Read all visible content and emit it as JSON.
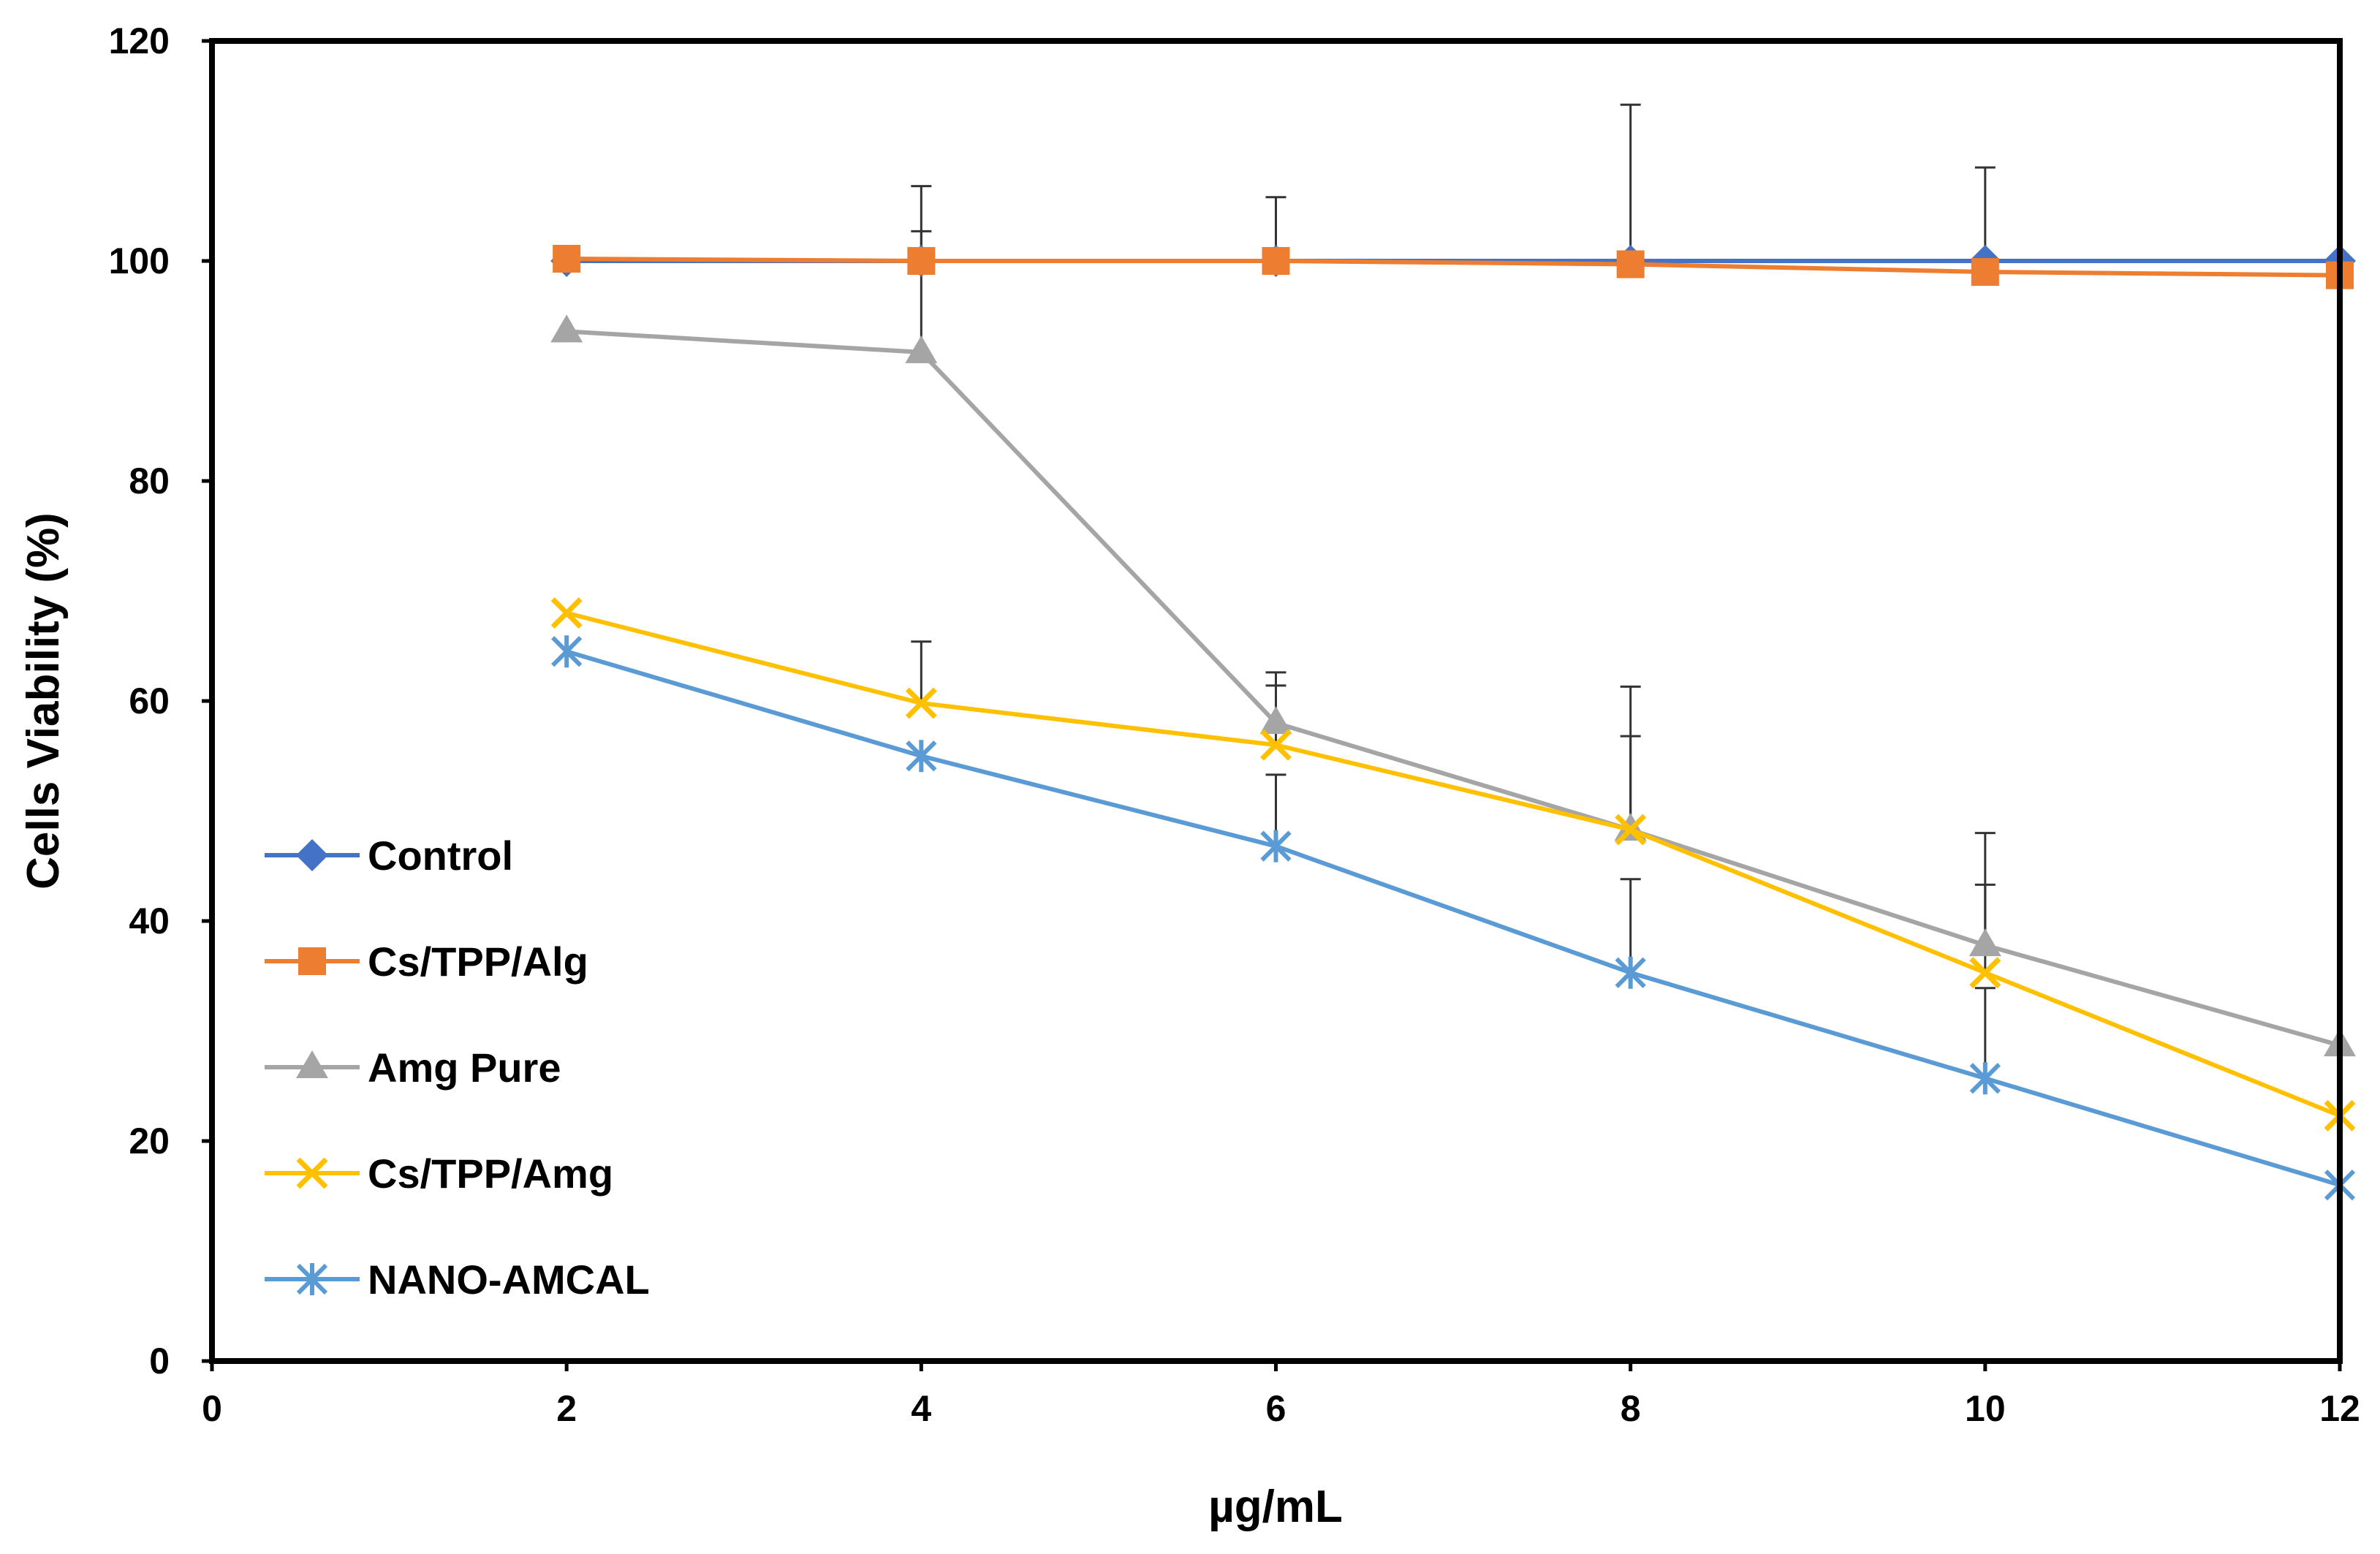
{
  "chart_data": {
    "type": "line",
    "title": "",
    "xlabel": "µg/mL",
    "ylabel": "Cells Viability (%)",
    "xlim": [
      0,
      12
    ],
    "ylim": [
      0,
      120
    ],
    "xticks": [
      0,
      2,
      4,
      6,
      8,
      10,
      12
    ],
    "yticks": [
      0,
      20,
      40,
      60,
      80,
      100,
      120
    ],
    "grid": false,
    "legend_position": "left",
    "series": [
      {
        "name": "Control",
        "color": "#4472C4",
        "marker": "diamond",
        "x": [
          2,
          4,
          6,
          8,
          10,
          12
        ],
        "values": [
          100,
          100,
          100,
          100,
          100,
          100
        ],
        "error": [
          0,
          0,
          0,
          0,
          0,
          0
        ]
      },
      {
        "name": "Cs/TPP/Alg",
        "color": "#ED7D31",
        "marker": "square",
        "x": [
          2,
          4,
          6,
          8,
          10,
          12
        ],
        "values": [
          100.2,
          100,
          100,
          99.7,
          99,
          98.7
        ],
        "error": [
          0,
          6.8,
          5.8,
          14.5,
          9.5,
          0
        ]
      },
      {
        "name": "Amg Pure",
        "color": "#A5A5A5",
        "marker": "triangle",
        "x": [
          2,
          4,
          6,
          8,
          10,
          12
        ],
        "values": [
          93.6,
          91.7,
          58,
          48.3,
          37.8,
          28.7
        ],
        "error": [
          0,
          11,
          4.6,
          8.5,
          5.5,
          0
        ]
      },
      {
        "name": "Cs/TPP/Amg",
        "color": "#FFC000",
        "marker": "x",
        "x": [
          2,
          4,
          6,
          8,
          10,
          12
        ],
        "values": [
          68,
          59.8,
          56,
          48.3,
          35.3,
          22.3
        ],
        "error": [
          0,
          5.6,
          5.4,
          13,
          12.7,
          0
        ]
      },
      {
        "name": "NANO-AMCAL",
        "color": "#5B9BD5",
        "marker": "asterisk",
        "x": [
          2,
          4,
          6,
          8,
          10,
          12
        ],
        "values": [
          64.5,
          55,
          46.8,
          35.3,
          25.7,
          16
        ],
        "error": [
          0,
          0,
          6.5,
          8.5,
          8.2,
          0
        ]
      }
    ]
  }
}
